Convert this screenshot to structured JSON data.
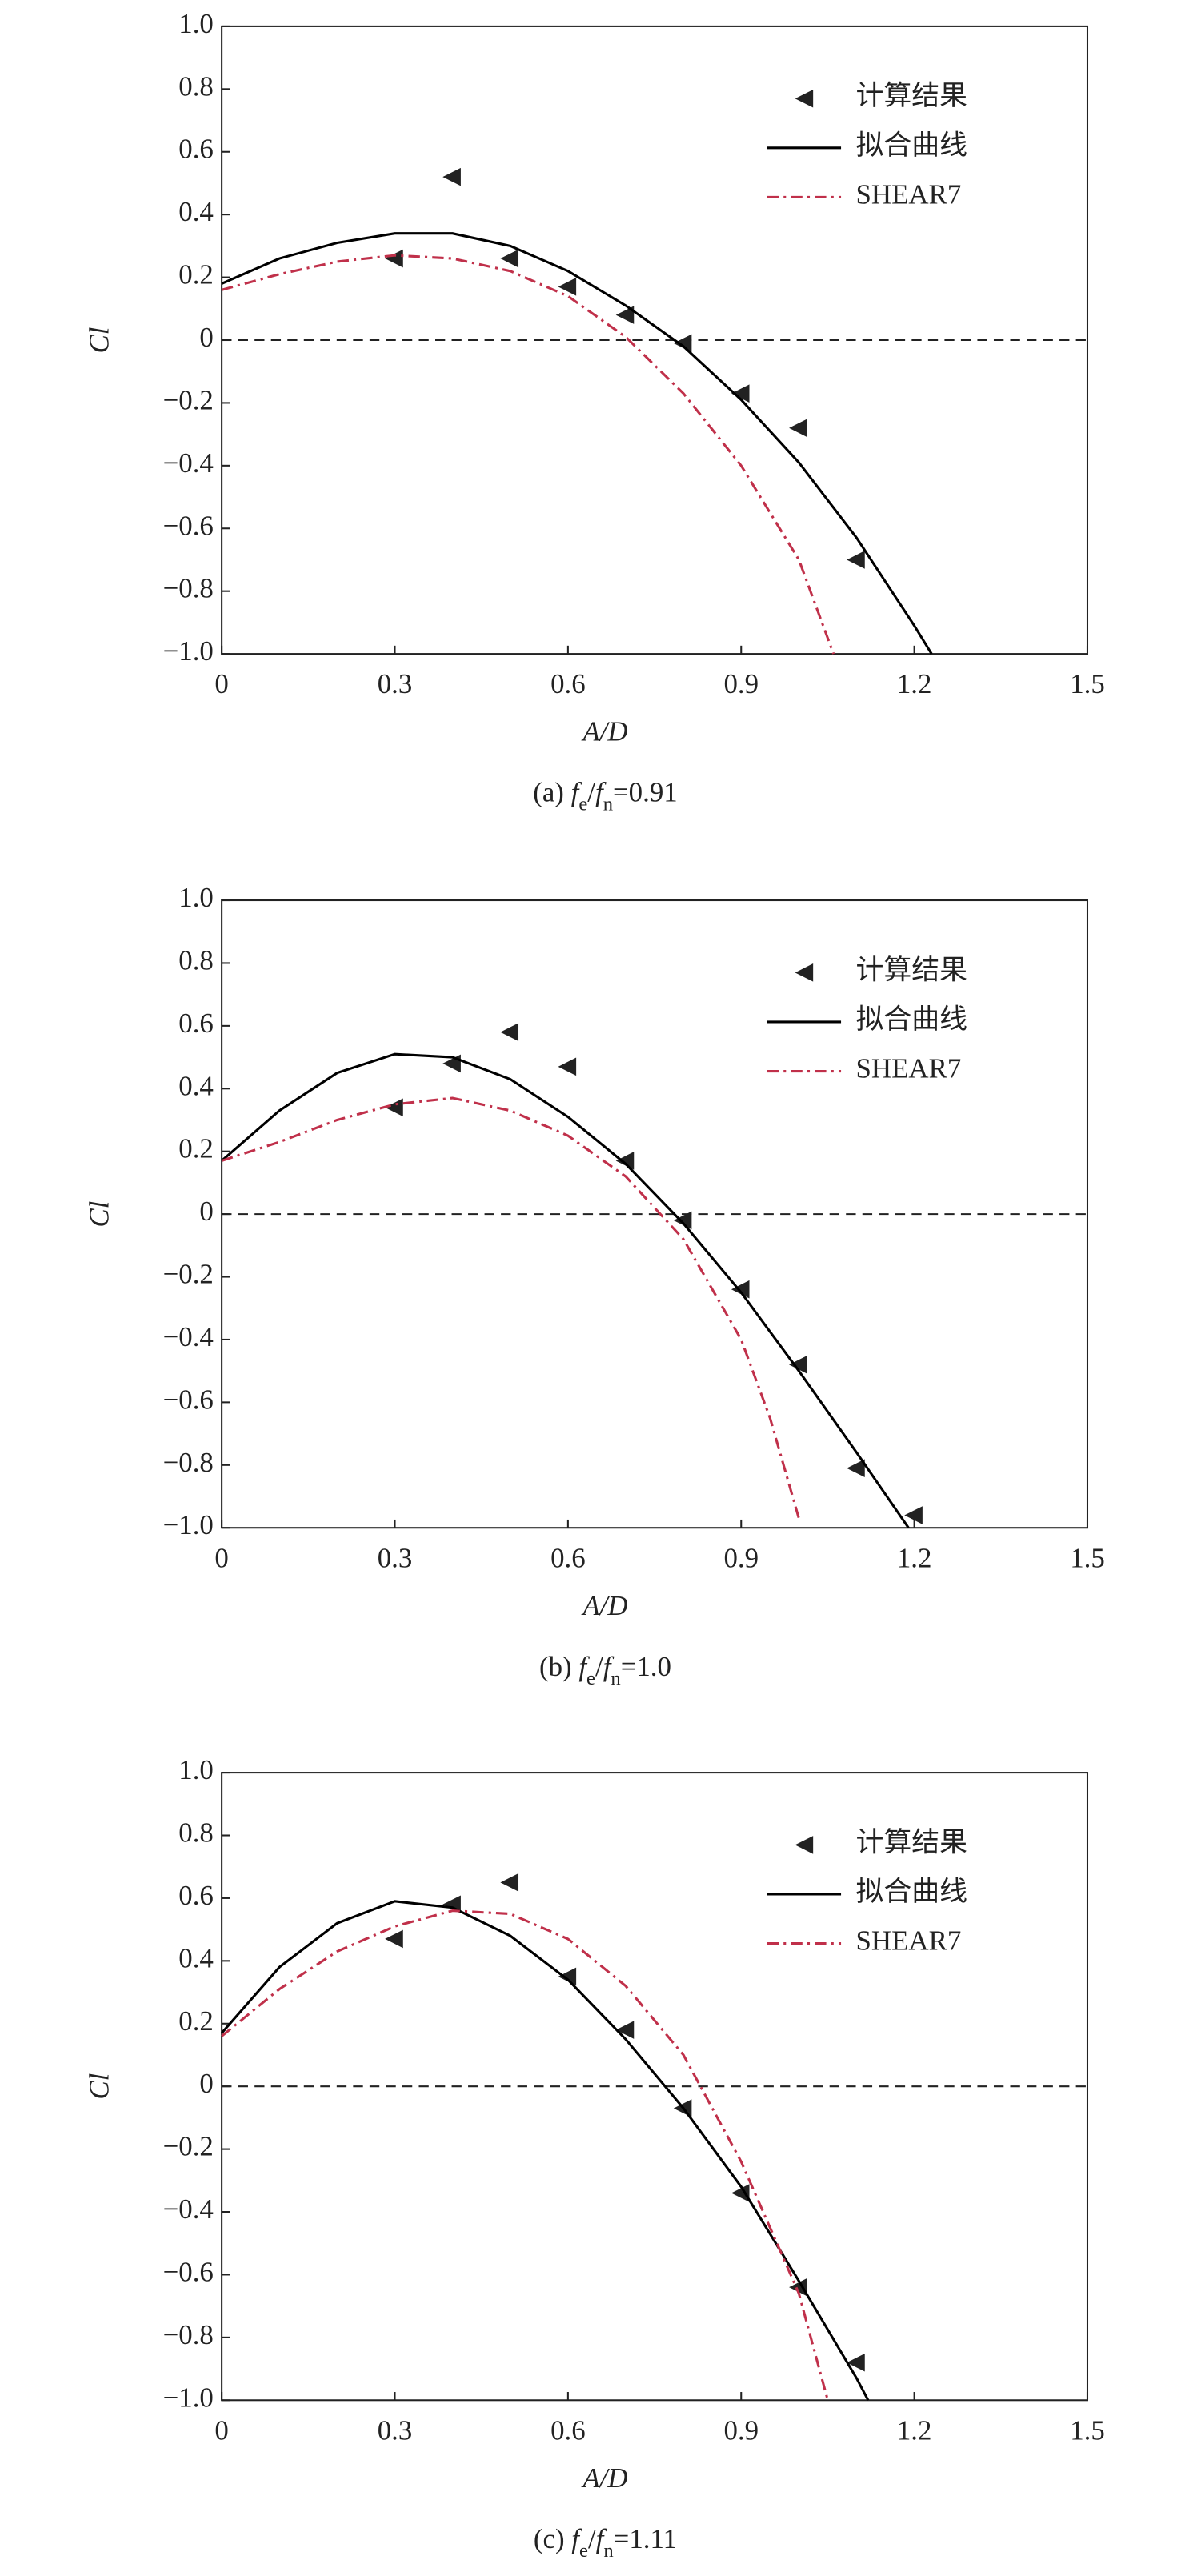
{
  "chart_data": [
    {
      "type": "line",
      "caption": [
        {
          "text": "(a) "
        },
        {
          "text": "f",
          "italic": true
        },
        {
          "text": "e",
          "sub": true
        },
        {
          "text": "/"
        },
        {
          "text": "f",
          "italic": true
        },
        {
          "text": "n",
          "sub": true
        },
        {
          "text": "=0.91"
        }
      ],
      "xlabel": "A/D",
      "ylabel": "Cl",
      "xlim": [
        0,
        1.5
      ],
      "ylim": [
        -1,
        1
      ],
      "xticks": [
        0,
        0.3,
        0.6,
        0.9,
        1.2,
        1.5
      ],
      "yticks": [
        {
          "value": -1,
          "label": "−1.0"
        },
        {
          "value": -0.8,
          "label": "−0.8"
        },
        {
          "value": -0.6,
          "label": "−0.6"
        },
        {
          "value": -0.4,
          "label": "−0.4"
        },
        {
          "value": -0.2,
          "label": "−0.2"
        },
        0,
        0.2,
        0.4,
        0.6,
        0.8,
        {
          "value": 1,
          "label": "1.0"
        }
      ],
      "reference_line": 0,
      "legend": "upper right",
      "series": [
        {
          "name": "计算结果",
          "kind": "scatter",
          "color": "#222222",
          "x": [
            0.3,
            0.4,
            0.5,
            0.6,
            0.7,
            0.8,
            0.9,
            1.0,
            1.1
          ],
          "values": [
            0.26,
            0.52,
            0.26,
            0.17,
            0.08,
            -0.01,
            -0.17,
            -0.28,
            -0.7
          ]
        },
        {
          "name": "拟合曲线",
          "kind": "solid",
          "color": "#000000",
          "x": [
            0,
            0.1,
            0.2,
            0.3,
            0.4,
            0.5,
            0.6,
            0.7,
            0.8,
            0.9,
            1.0,
            1.1,
            1.2,
            1.23
          ],
          "values": [
            0.18,
            0.26,
            0.31,
            0.34,
            0.34,
            0.3,
            0.22,
            0.11,
            -0.02,
            -0.19,
            -0.39,
            -0.63,
            -0.91,
            -1.0
          ]
        },
        {
          "name": "SHEAR7",
          "kind": "dashdot",
          "color": "#c0304a",
          "x": [
            0,
            0.1,
            0.2,
            0.3,
            0.4,
            0.5,
            0.6,
            0.7,
            0.8,
            0.9,
            1.0,
            1.06
          ],
          "values": [
            0.16,
            0.21,
            0.25,
            0.27,
            0.26,
            0.22,
            0.14,
            0.01,
            -0.17,
            -0.4,
            -0.7,
            -1.0
          ]
        }
      ]
    },
    {
      "type": "line",
      "caption": [
        {
          "text": "(b) "
        },
        {
          "text": "f",
          "italic": true
        },
        {
          "text": "e",
          "sub": true
        },
        {
          "text": "/"
        },
        {
          "text": "f",
          "italic": true
        },
        {
          "text": "n",
          "sub": true
        },
        {
          "text": "=1.0"
        }
      ],
      "xlabel": "A/D",
      "ylabel": "Cl",
      "xlim": [
        0,
        1.5
      ],
      "ylim": [
        -1,
        1
      ],
      "xticks": [
        0,
        0.3,
        0.6,
        0.9,
        1.2,
        1.5
      ],
      "yticks": [
        {
          "value": -1,
          "label": "−1.0"
        },
        {
          "value": -0.8,
          "label": "−0.8"
        },
        {
          "value": -0.6,
          "label": "−0.6"
        },
        {
          "value": -0.4,
          "label": "−0.4"
        },
        {
          "value": -0.2,
          "label": "−0.2"
        },
        0,
        0.2,
        0.4,
        0.6,
        0.8,
        {
          "value": 1,
          "label": "1.0"
        }
      ],
      "reference_line": 0,
      "legend": "upper right",
      "series": [
        {
          "name": "计算结果",
          "kind": "scatter",
          "color": "#222222",
          "x": [
            0.3,
            0.4,
            0.5,
            0.6,
            0.7,
            0.8,
            0.9,
            1.0,
            1.1,
            1.2
          ],
          "values": [
            0.34,
            0.48,
            0.58,
            0.47,
            0.17,
            -0.02,
            -0.24,
            -0.48,
            -0.81,
            -0.96
          ]
        },
        {
          "name": "拟合曲线",
          "kind": "solid",
          "color": "#000000",
          "x": [
            0,
            0.1,
            0.2,
            0.3,
            0.4,
            0.5,
            0.6,
            0.7,
            0.8,
            0.9,
            1.0,
            1.1,
            1.19
          ],
          "values": [
            0.17,
            0.33,
            0.45,
            0.51,
            0.5,
            0.43,
            0.31,
            0.16,
            -0.03,
            -0.25,
            -0.5,
            -0.76,
            -1.0
          ]
        },
        {
          "name": "SHEAR7",
          "kind": "dashdot",
          "color": "#c0304a",
          "x": [
            0,
            0.1,
            0.2,
            0.3,
            0.4,
            0.5,
            0.6,
            0.7,
            0.8,
            0.9,
            0.95,
            1.0
          ],
          "values": [
            0.17,
            0.23,
            0.3,
            0.35,
            0.37,
            0.33,
            0.25,
            0.12,
            -0.08,
            -0.4,
            -0.65,
            -0.97
          ]
        }
      ]
    },
    {
      "type": "line",
      "caption": [
        {
          "text": "(c) "
        },
        {
          "text": "f",
          "italic": true
        },
        {
          "text": "e",
          "sub": true
        },
        {
          "text": "/"
        },
        {
          "text": "f",
          "italic": true
        },
        {
          "text": "n",
          "sub": true
        },
        {
          "text": "=1.11"
        }
      ],
      "xlabel": "A/D",
      "ylabel": "Cl",
      "xlim": [
        0,
        1.5
      ],
      "ylim": [
        -1,
        1
      ],
      "xticks": [
        0,
        0.3,
        0.6,
        0.9,
        1.2,
        1.5
      ],
      "yticks": [
        {
          "value": -1,
          "label": "−1.0"
        },
        {
          "value": -0.8,
          "label": "−0.8"
        },
        {
          "value": -0.6,
          "label": "−0.6"
        },
        {
          "value": -0.4,
          "label": "−0.4"
        },
        {
          "value": -0.2,
          "label": "−0.2"
        },
        0,
        0.2,
        0.4,
        0.6,
        0.8,
        {
          "value": 1,
          "label": "1.0"
        }
      ],
      "reference_line": 0,
      "legend": "upper right",
      "series": [
        {
          "name": "计算结果",
          "kind": "scatter",
          "color": "#222222",
          "x": [
            0.3,
            0.4,
            0.5,
            0.6,
            0.7,
            0.8,
            0.9,
            1.0,
            1.1
          ],
          "values": [
            0.47,
            0.58,
            0.65,
            0.35,
            0.18,
            -0.07,
            -0.34,
            -0.64,
            -0.88
          ]
        },
        {
          "name": "拟合曲线",
          "kind": "solid",
          "color": "#000000",
          "x": [
            0,
            0.1,
            0.2,
            0.3,
            0.4,
            0.5,
            0.6,
            0.7,
            0.8,
            0.9,
            1.0,
            1.1,
            1.12
          ],
          "values": [
            0.17,
            0.38,
            0.52,
            0.59,
            0.57,
            0.48,
            0.34,
            0.15,
            -0.07,
            -0.32,
            -0.62,
            -0.93,
            -1.0
          ]
        },
        {
          "name": "SHEAR7",
          "kind": "dashdot",
          "color": "#c0304a",
          "x": [
            0,
            0.1,
            0.2,
            0.3,
            0.4,
            0.5,
            0.6,
            0.7,
            0.8,
            0.9,
            1.0,
            1.05
          ],
          "values": [
            0.16,
            0.31,
            0.43,
            0.51,
            0.56,
            0.55,
            0.47,
            0.32,
            0.1,
            -0.24,
            -0.66,
            -1.0
          ]
        }
      ]
    }
  ]
}
